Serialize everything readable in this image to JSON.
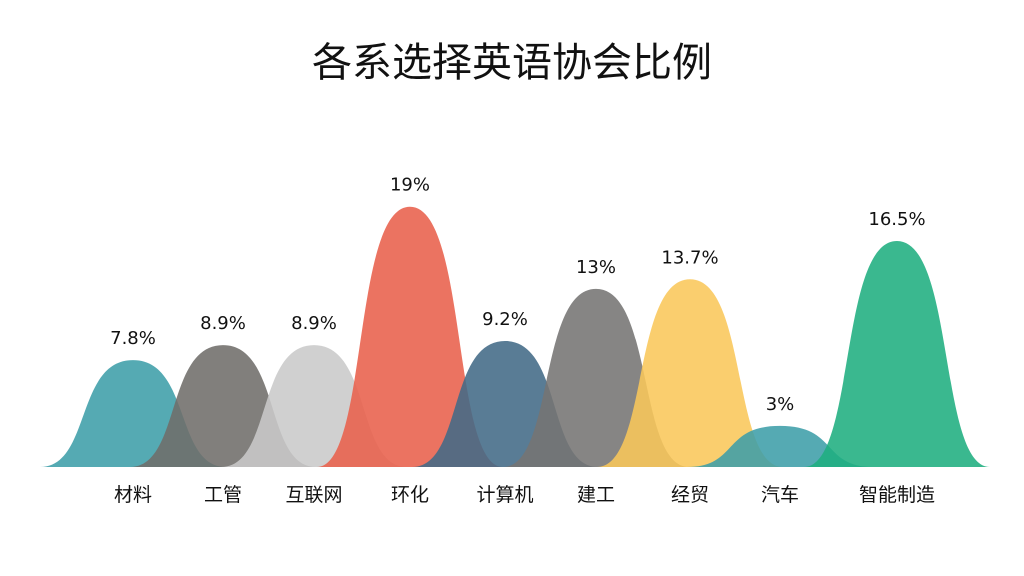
{
  "chart_data": {
    "type": "area",
    "title": "各系选择英语协会比例",
    "categories": [
      "材料",
      "工管",
      "互联网",
      "环化",
      "计算机",
      "建工",
      "经贸",
      "汽车",
      "智能制造"
    ],
    "values": [
      7.8,
      8.9,
      8.9,
      19,
      9.2,
      13,
      13.7,
      3,
      16.5
    ],
    "value_labels": [
      "7.8%",
      "8.9%",
      "8.9%",
      "19%",
      "9.2%",
      "13%",
      "13.7%",
      "3%",
      "16.5%"
    ],
    "colors": [
      "#3d9ea9",
      "#6f6d6a",
      "#c9cac9",
      "#e8604b",
      "#426a86",
      "#757473",
      "#f9c75a",
      "#3d9ea9",
      "#1fae80"
    ],
    "grid": false,
    "legend": "none"
  }
}
